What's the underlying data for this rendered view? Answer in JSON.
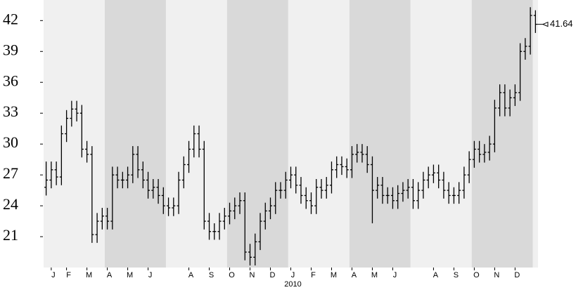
{
  "chart_data": {
    "type": "ohlc",
    "categories": [
      null,
      "J",
      "J",
      "J",
      "F",
      "F",
      "F",
      "F",
      "M",
      "M",
      "M",
      "M",
      "A",
      "A",
      "A",
      "A",
      "M",
      "M",
      "M",
      "M",
      "J",
      "J",
      "J",
      "J",
      "J",
      "J",
      "J",
      "J",
      "A",
      "A",
      "A",
      "A",
      "S",
      "S",
      "S",
      "S",
      "O",
      "O",
      "O",
      "O",
      "N",
      "N",
      "N",
      "N",
      "D",
      "D",
      "D",
      "D",
      "J",
      "J",
      "J",
      "J",
      "F",
      "F",
      "F",
      "F",
      "M",
      "M",
      "M",
      "M",
      "A",
      "A",
      "A",
      "A",
      "M",
      "M",
      "M",
      "M",
      "J",
      "J",
      "J",
      "J",
      "J",
      "J",
      "J",
      "J",
      "A",
      "A",
      "A",
      "A",
      "S",
      "S",
      "S",
      "S",
      "O",
      "O",
      "O",
      "O",
      "N",
      "N",
      "N",
      "N",
      "D",
      "D",
      "D",
      "D",
      "D"
    ],
    "open": [
      25.8,
      26.5,
      27.5,
      26.8,
      31,
      32.5,
      33.4,
      33,
      29.5,
      29,
      21.2,
      22.5,
      23,
      22.5,
      27,
      26.5,
      26.5,
      27,
      29,
      27.5,
      26.5,
      25.5,
      25.8,
      25,
      24,
      23.8,
      24,
      26.5,
      28,
      29.5,
      31,
      29.5,
      22.5,
      21.5,
      21.5,
      22.5,
      23,
      23.5,
      24,
      24.5,
      19.5,
      19,
      20.5,
      22.5,
      23.5,
      24,
      25.5,
      25.5,
      26.5,
      27,
      26,
      25,
      24.5,
      24,
      25.8,
      25.5,
      26,
      27.5,
      28,
      27.8,
      27.5,
      29,
      29.2,
      29,
      28,
      25.5,
      26,
      25,
      25,
      24.5,
      25.2,
      25.5,
      25.8,
      24.5,
      25.5,
      26.5,
      27,
      27.2,
      26.5,
      25.5,
      25,
      25,
      25.5,
      27,
      28.5,
      29.5,
      29,
      29.2,
      30,
      33.5,
      35,
      33.5,
      34.5,
      35,
      39,
      39.5,
      42.5
    ],
    "high": [
      28.3,
      28.3,
      28.3,
      31.8,
      33.3,
      34.2,
      34.2,
      33.8,
      30.3,
      29.8,
      23.3,
      23.8,
      23.8,
      27.8,
      27.8,
      27.3,
      27.8,
      29.8,
      29.8,
      28.3,
      27.3,
      26.6,
      26.6,
      25.8,
      24.8,
      24.8,
      27.3,
      28.8,
      30.3,
      31.8,
      31.8,
      30.3,
      23.3,
      22.3,
      23.3,
      23.8,
      24.3,
      24.8,
      25.3,
      25.3,
      20.3,
      21.3,
      23.3,
      24.3,
      24.8,
      26.3,
      26.3,
      27.3,
      27.8,
      27.8,
      26.8,
      25.8,
      25.3,
      26.6,
      26.6,
      26.8,
      28.3,
      28.8,
      28.8,
      28.6,
      29.8,
      30.0,
      30.0,
      29.8,
      28.8,
      26.8,
      26.8,
      25.8,
      25.8,
      26.0,
      26.3,
      26.6,
      26.6,
      26.3,
      27.3,
      27.8,
      28.0,
      28.0,
      27.3,
      26.3,
      25.8,
      26.3,
      27.8,
      29.3,
      30.3,
      30.3,
      30.0,
      30.8,
      34.3,
      35.8,
      35.8,
      35.3,
      35.8,
      39.8,
      40.3,
      43.3,
      43.0
    ],
    "low": [
      25.0,
      25.7,
      26.0,
      26.0,
      30.2,
      31.7,
      32.2,
      28.7,
      28.2,
      20.4,
      20.4,
      21.7,
      21.7,
      21.7,
      25.7,
      25.7,
      25.7,
      26.2,
      26.7,
      25.7,
      24.7,
      24.7,
      24.2,
      23.2,
      23.0,
      23.0,
      23.2,
      25.7,
      27.2,
      28.7,
      28.7,
      21.7,
      20.7,
      20.7,
      20.7,
      21.7,
      22.2,
      22.7,
      23.2,
      18.7,
      18.2,
      18.2,
      19.7,
      21.7,
      22.7,
      23.2,
      24.7,
      24.7,
      25.7,
      25.2,
      24.2,
      23.7,
      23.2,
      23.2,
      24.7,
      24.7,
      25.2,
      26.7,
      27.0,
      26.7,
      26.7,
      28.2,
      28.2,
      27.2,
      22.3,
      24.7,
      24.2,
      24.2,
      23.7,
      23.7,
      24.4,
      24.7,
      23.7,
      23.7,
      24.7,
      25.7,
      26.2,
      25.7,
      24.7,
      24.2,
      24.2,
      24.2,
      24.7,
      26.2,
      27.7,
      28.2,
      28.2,
      28.4,
      29.2,
      32.7,
      32.7,
      32.7,
      33.7,
      34.2,
      38.2,
      38.7,
      40.8
    ],
    "close": [
      26.5,
      27.5,
      26.8,
      31,
      32.5,
      33.4,
      33,
      29.5,
      29,
      21.2,
      22.5,
      23,
      22.5,
      27,
      26.5,
      26.5,
      27,
      29,
      27.5,
      26.5,
      25.5,
      25.8,
      25,
      24,
      23.8,
      24,
      26.5,
      28,
      29.5,
      31,
      29.5,
      22.5,
      21.5,
      21.5,
      22.5,
      23,
      23.5,
      24,
      24.5,
      19.5,
      19,
      20.5,
      22.5,
      23.5,
      24,
      25.5,
      25.5,
      26.5,
      27,
      26,
      25,
      24.5,
      24,
      25.8,
      25.5,
      26,
      27.5,
      28,
      27.8,
      27.5,
      29,
      29.2,
      29,
      28,
      25.5,
      26,
      25,
      25,
      24.5,
      25.2,
      25.5,
      25.8,
      24.5,
      25.5,
      26.5,
      27,
      27.2,
      26.5,
      25.5,
      25,
      25,
      25.5,
      27,
      28.5,
      29.5,
      29,
      29.2,
      30,
      33.5,
      35,
      33.5,
      34.5,
      35,
      39,
      39.5,
      42.5,
      41.64
    ],
    "x_group_label": "2010",
    "last_value_label": "41.64",
    "ylim": [
      18,
      44
    ],
    "yticks": [
      21,
      24,
      27,
      30,
      33,
      36,
      39,
      42
    ],
    "color": "#000000",
    "band_colors": [
      "#f0f0f0",
      "#d9d9d9"
    ]
  }
}
